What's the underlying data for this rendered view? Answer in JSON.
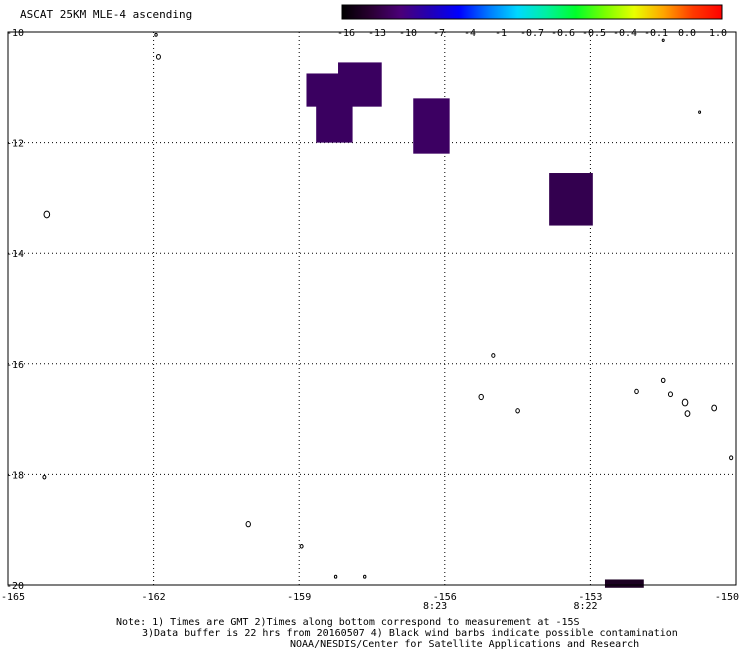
{
  "title": "ASCAT 25KM MLE-4 ascending",
  "colorbar": {
    "labels": [
      "-16",
      "-13",
      "-10",
      "-7",
      "-4",
      "-1",
      "-0.7",
      "-0.6",
      "-0.5",
      "-0.4",
      "-0.1",
      "0.0",
      "1.0"
    ],
    "colors": [
      "#000000",
      "#2a0033",
      "#4b0078",
      "#2200b4",
      "#0000ff",
      "#0077ff",
      "#00d8ff",
      "#00f0a0",
      "#00ff2a",
      "#7aff00",
      "#e8ff00",
      "#ffa500",
      "#ff3a00",
      "#ff0000"
    ]
  },
  "axes": {
    "lat": {
      "min": -20,
      "max": -10,
      "ticks": [
        "-10",
        "-12",
        "-14",
        "-16",
        "-18",
        "-20"
      ]
    },
    "lon": {
      "min": -165,
      "max": -150,
      "ticks": [
        "-165",
        "-162",
        "-159",
        "-156",
        "-153",
        "-150"
      ]
    },
    "grid": "dotted"
  },
  "data_cells": [
    {
      "lon_min": -158.85,
      "lon_max": -157.95,
      "lat_min": -11.35,
      "lat_max": -10.75,
      "value_color": "#3a0060"
    },
    {
      "lon_min": -158.2,
      "lon_max": -157.3,
      "lat_min": -11.35,
      "lat_max": -10.55,
      "value_color": "#3a0060"
    },
    {
      "lon_min": -158.65,
      "lon_max": -157.9,
      "lat_min": -12.0,
      "lat_max": -11.2,
      "value_color": "#3a0060"
    },
    {
      "lon_min": -156.65,
      "lon_max": -155.9,
      "lat_min": -12.2,
      "lat_max": -11.2,
      "value_color": "#3c0062"
    },
    {
      "lon_min": -153.85,
      "lon_max": -152.95,
      "lat_min": -13.5,
      "lat_max": -12.55,
      "value_color": "#33004f"
    },
    {
      "lon_min": -152.7,
      "lon_max": -151.9,
      "lat_min": -20.05,
      "lat_max": -19.9,
      "value_color": "#1c0022"
    }
  ],
  "time_labels": [
    {
      "text": "8:23",
      "lon": -156.2,
      "color": "#cc2200"
    },
    {
      "text": "8:22",
      "lon": -153.1,
      "color": "#cc2200"
    }
  ],
  "islands": [
    {
      "lon": -161.95,
      "lat": -10.05,
      "r": 1.2
    },
    {
      "lon": -161.9,
      "lat": -10.45,
      "r": 2.0
    },
    {
      "lon": -164.2,
      "lat": -13.3,
      "r": 2.8
    },
    {
      "lon": -164.25,
      "lat": -18.05,
      "r": 1.5
    },
    {
      "lon": -160.05,
      "lat": -18.9,
      "r": 2.2
    },
    {
      "lon": -158.95,
      "lat": -19.3,
      "r": 1.5
    },
    {
      "lon": -158.25,
      "lat": -19.85,
      "r": 1.2
    },
    {
      "lon": -157.65,
      "lat": -19.85,
      "r": 1.2
    },
    {
      "lon": -151.5,
      "lat": -10.15,
      "r": 1.0
    },
    {
      "lon": -150.75,
      "lat": -11.45,
      "r": 1.0
    },
    {
      "lon": -155.0,
      "lat": -15.85,
      "r": 1.6
    },
    {
      "lon": -155.25,
      "lat": -16.6,
      "r": 2.2
    },
    {
      "lon": -154.5,
      "lat": -16.85,
      "r": 1.8
    },
    {
      "lon": -152.05,
      "lat": -16.5,
      "r": 1.8
    },
    {
      "lon": -151.5,
      "lat": -16.3,
      "r": 1.8
    },
    {
      "lon": -151.35,
      "lat": -16.55,
      "r": 2.0
    },
    {
      "lon": -151.05,
      "lat": -16.7,
      "r": 2.8
    },
    {
      "lon": -151.0,
      "lat": -16.9,
      "r": 2.4
    },
    {
      "lon": -150.45,
      "lat": -16.8,
      "r": 2.4
    },
    {
      "lon": -150.1,
      "lat": -17.7,
      "r": 1.6
    }
  ],
  "notes": {
    "line1": "Note: 1) Times are GMT 2)Times along bottom correspond to measurement at -15S",
    "line2": "3)Data buffer is 22 hrs from 20160507 4) Black wind barbs indicate possible contamination",
    "line3": "NOAA/NESDIS/Center for Satellite Applications and Research"
  }
}
